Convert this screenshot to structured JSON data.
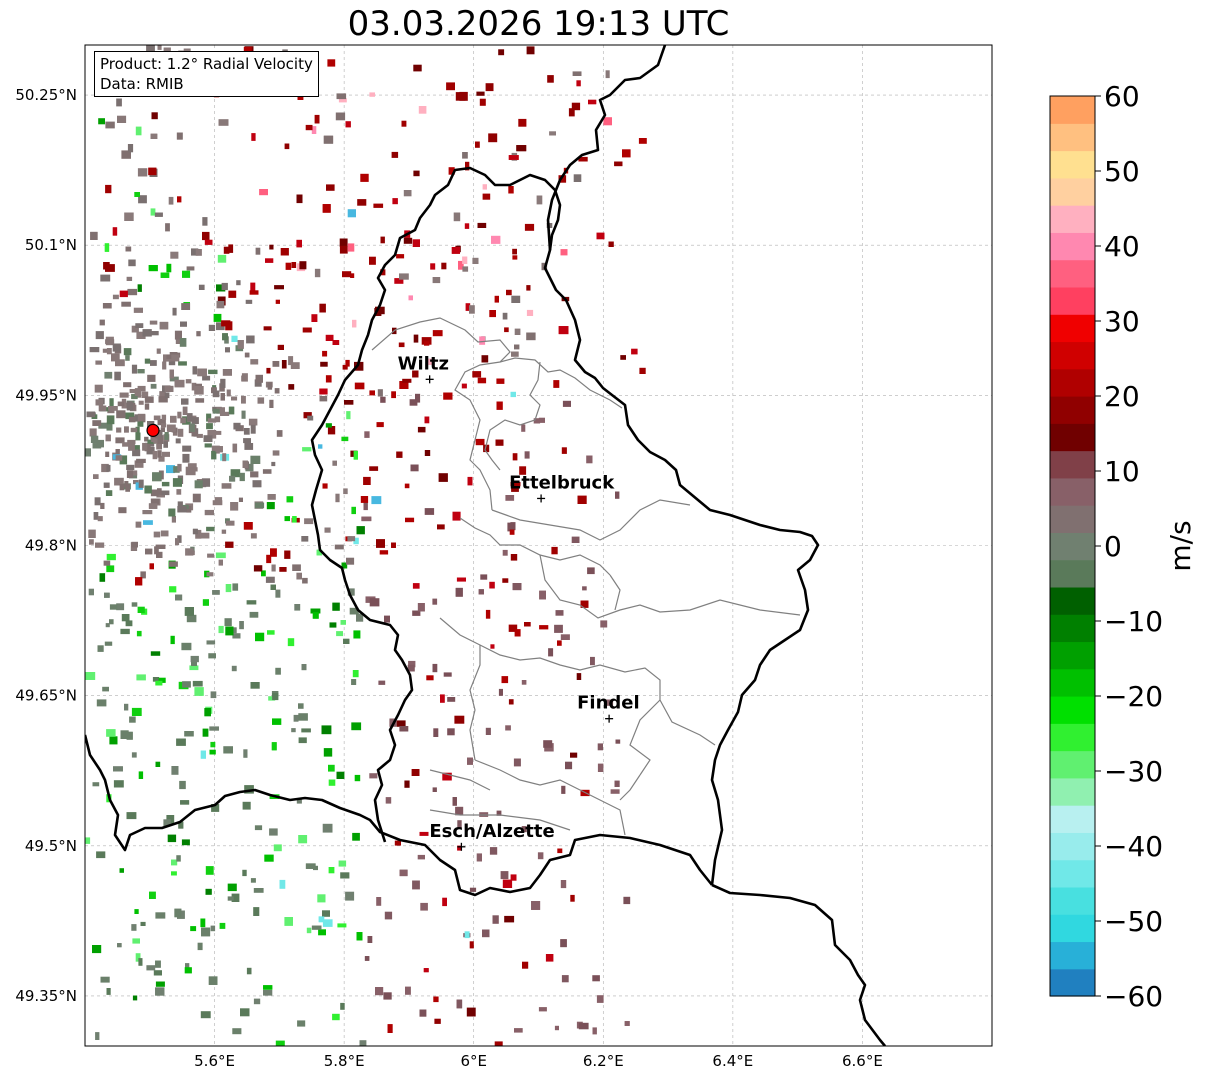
{
  "title": "03.03.2026 19:13 UTC",
  "legend": {
    "product": "Product: 1.2° Radial Velocity",
    "source": "Data: RMIB"
  },
  "colorbar": {
    "unit": "m/s",
    "range": [
      -60,
      60
    ],
    "tick_labels": [
      "60",
      "50",
      "40",
      "30",
      "20",
      "10",
      "0",
      "−10",
      "−20",
      "−30",
      "−40",
      "−50",
      "−60"
    ],
    "colors_low_to_high": [
      "#2080c0",
      "#28b0d8",
      "#30d8e0",
      "#48e0e0",
      "#70e8e8",
      "#98ecec",
      "#b8f0f0",
      "#90f0b0",
      "#60f070",
      "#30f030",
      "#00e000",
      "#00c000",
      "#00a000",
      "#008000",
      "#006000",
      "#5a7a5a",
      "#708070",
      "#807070",
      "#886068",
      "#804048",
      "#700000",
      "#900000",
      "#b00000",
      "#d00000",
      "#f00000",
      "#ff4060",
      "#ff6080",
      "#ff88b0",
      "#ffb0c0",
      "#ffd0a0",
      "#ffe090",
      "#ffc080",
      "#ffa060"
    ]
  },
  "map": {
    "lon_range": [
      5.4,
      6.8
    ],
    "lat_range": [
      49.3,
      50.3
    ],
    "lat_ticks": [
      {
        "value": 50.25,
        "label": "50.25°N"
      },
      {
        "value": 50.1,
        "label": "50.1°N"
      },
      {
        "value": 49.95,
        "label": "49.95°N"
      },
      {
        "value": 49.8,
        "label": "49.8°N"
      },
      {
        "value": 49.65,
        "label": "49.65°N"
      },
      {
        "value": 49.5,
        "label": "49.5°N"
      },
      {
        "value": 49.35,
        "label": "49.35°N"
      }
    ],
    "lon_ticks": [
      {
        "value": 5.6,
        "label": "5.6°E"
      },
      {
        "value": 5.8,
        "label": "5.8°E"
      },
      {
        "value": 6.0,
        "label": "6°E"
      },
      {
        "value": 6.2,
        "label": "6.2°E"
      },
      {
        "value": 6.4,
        "label": "6.4°E"
      },
      {
        "value": 6.6,
        "label": "6.6°E"
      }
    ],
    "radar_site": {
      "lon": 5.505,
      "lat": 49.915
    },
    "cities": [
      {
        "name": "Wiltz",
        "lon": 5.932,
        "lat": 49.966
      },
      {
        "name": "Ettelbruck",
        "lon": 6.104,
        "lat": 49.847
      },
      {
        "name": "Findel",
        "lon": 6.209,
        "lat": 49.627
      },
      {
        "name": "Esch/Alzette",
        "lon": 5.981,
        "lat": 49.499
      }
    ],
    "border_color": "#000000",
    "canton_color": "#808080"
  }
}
